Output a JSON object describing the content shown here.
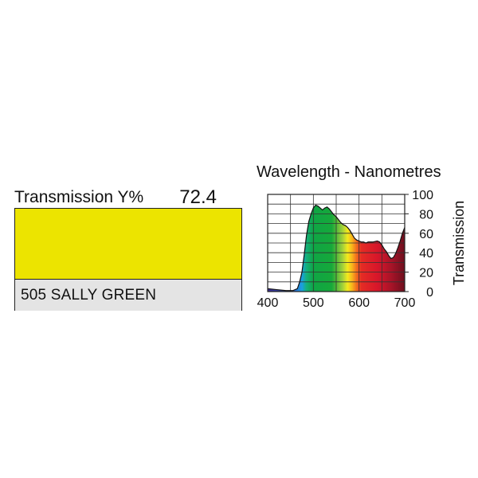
{
  "transmission": {
    "label": "Transmission Y%",
    "value": "72.4"
  },
  "filter": {
    "name": "505 SALLY GREEN",
    "swatch_color": "#ece400"
  },
  "chart_data": {
    "type": "area",
    "title": "Wavelength - Nanometres",
    "xlabel": "",
    "ylabel": "Transmission",
    "xlim": [
      400,
      700
    ],
    "ylim": [
      0,
      100
    ],
    "x_ticks": [
      400,
      500,
      600,
      700
    ],
    "y_ticks": [
      0,
      20,
      40,
      60,
      80,
      100
    ],
    "grid": true,
    "fill": "visible-spectrum gradient",
    "series": [
      {
        "x": [
          400,
          420,
          440,
          455,
          465,
          470,
          475,
          480,
          485,
          490,
          495,
          500,
          505,
          510,
          515,
          520,
          525,
          530,
          535,
          540,
          545,
          550,
          555,
          560,
          565,
          570,
          575,
          580,
          585,
          590,
          595,
          600,
          605,
          610,
          615,
          620,
          630,
          640,
          645,
          650,
          655,
          660,
          665,
          670,
          675,
          680,
          685,
          690,
          695,
          700
        ],
        "y": [
          3,
          2,
          1,
          1,
          3,
          10,
          20,
          38,
          58,
          72,
          80,
          86,
          89,
          88,
          86,
          84,
          86,
          87,
          85,
          82,
          79,
          77,
          74,
          71,
          69,
          68,
          66,
          63,
          59,
          55,
          53,
          52,
          51,
          51,
          50,
          51,
          51,
          52,
          51,
          48,
          44,
          41,
          37,
          34,
          35,
          39,
          45,
          52,
          60,
          66
        ]
      }
    ]
  }
}
